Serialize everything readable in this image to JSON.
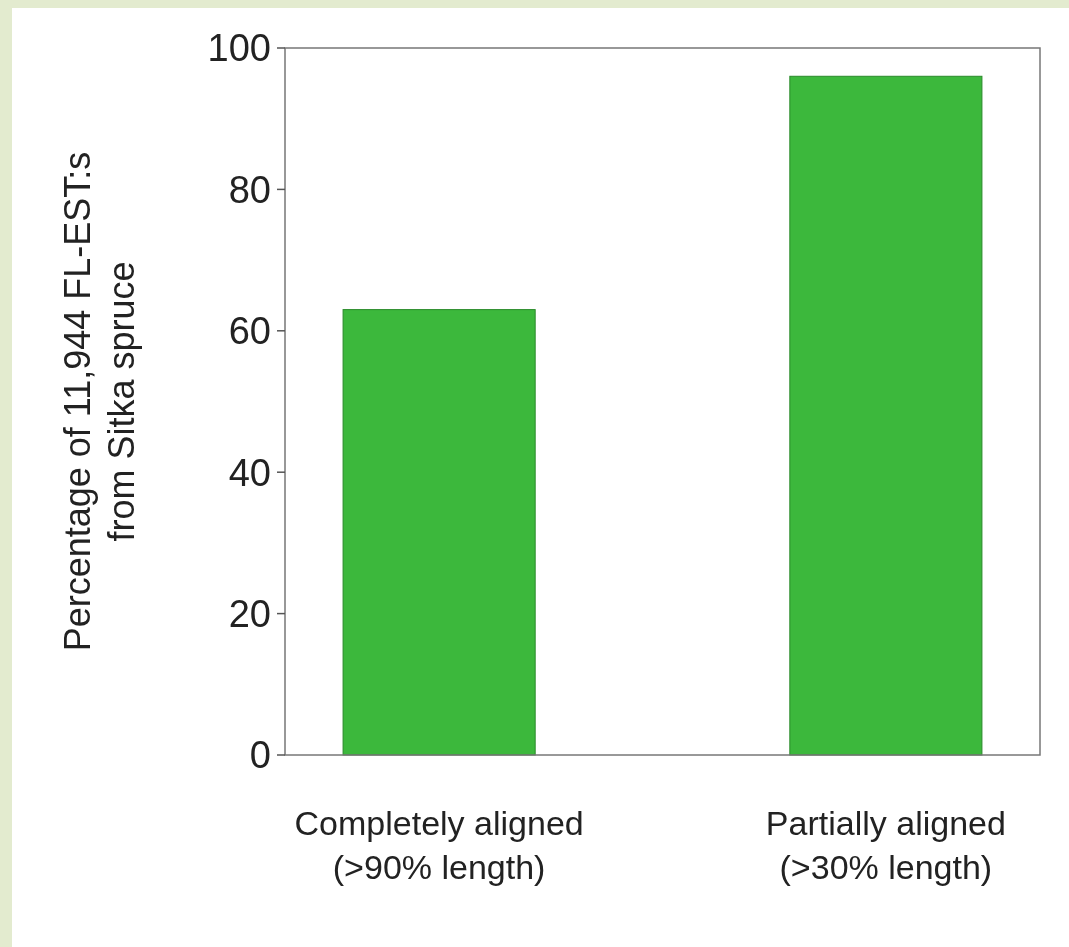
{
  "chart_data": {
    "type": "bar",
    "ylabel": "Percentage of 11,944 FL-EST:s\nfrom Sitka spruce",
    "categories": [
      "Completely aligned\n(>90% length)",
      "Partially aligned\n(>30% length)"
    ],
    "values": [
      63,
      96
    ],
    "color": "#3cb83c",
    "ylim": [
      0,
      100
    ],
    "yticks": [
      0,
      20,
      40,
      60,
      80,
      100
    ],
    "grid": false
  }
}
